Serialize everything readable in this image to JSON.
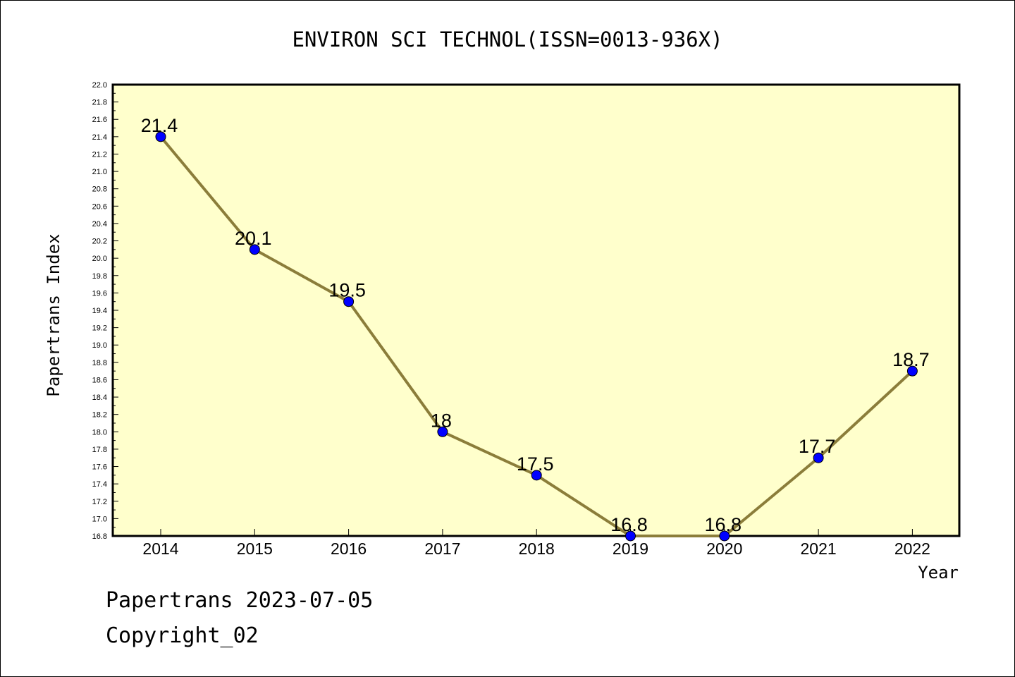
{
  "chart_data": {
    "type": "line",
    "title": "ENVIRON SCI TECHNOL(ISSN=0013-936X)",
    "xlabel": "Year",
    "ylabel": "Papertrans Index",
    "categories": [
      "2014",
      "2015",
      "2016",
      "2017",
      "2018",
      "2019",
      "2020",
      "2021",
      "2022"
    ],
    "series": [
      {
        "values": [
          21.4,
          20.1,
          19.5,
          18.0,
          17.5,
          16.8,
          16.8,
          17.7,
          18.7
        ]
      }
    ],
    "data_labels": [
      "21.4",
      "20.1",
      "19.5",
      "18",
      "17.5",
      "16.8",
      "16.8",
      "17.7",
      "18.7"
    ],
    "ylim": [
      16.8,
      22.0
    ],
    "ytick_step": 0.2,
    "grid": false,
    "colors": {
      "plot_background": "#ffffcc",
      "line": "#8b7d3a",
      "marker": "#0000ff"
    }
  },
  "footer": {
    "date_line": "Papertrans 2023-07-05",
    "copyright": "Copyright_02"
  }
}
